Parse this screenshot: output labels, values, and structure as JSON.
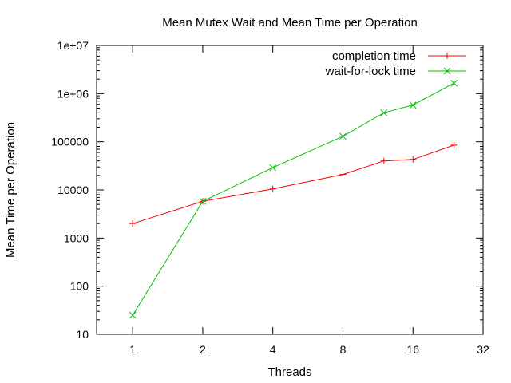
{
  "chart_data": {
    "type": "line",
    "title": "Mean Mutex Wait and Mean Time per Operation",
    "xlabel": "Threads",
    "ylabel": "Mean Time per Operation",
    "x_scale": "log2",
    "y_scale": "log10",
    "xlim": [
      0.7,
      32
    ],
    "ylim": [
      10,
      10000000
    ],
    "x_ticks": [
      {
        "value": 1,
        "label": "1"
      },
      {
        "value": 2,
        "label": "2"
      },
      {
        "value": 4,
        "label": "4"
      },
      {
        "value": 8,
        "label": "8"
      },
      {
        "value": 16,
        "label": "16"
      },
      {
        "value": 32,
        "label": "32"
      }
    ],
    "y_ticks": [
      {
        "value": 10,
        "label": "10"
      },
      {
        "value": 100,
        "label": "100"
      },
      {
        "value": 1000,
        "label": "1000"
      },
      {
        "value": 10000,
        "label": "10000"
      },
      {
        "value": 100000,
        "label": "100000"
      },
      {
        "value": 1000000,
        "label": "1e+06"
      },
      {
        "value": 10000000,
        "label": "1e+07"
      }
    ],
    "legend_position": "top-right",
    "grid": false,
    "series": [
      {
        "name": "completion time",
        "color": "#ff0000",
        "marker": "plus",
        "x": [
          1,
          2,
          4,
          8,
          12,
          16,
          24
        ],
        "y": [
          2000,
          5800,
          10500,
          21000,
          40000,
          43000,
          85000
        ]
      },
      {
        "name": "wait-for-lock time",
        "color": "#00c000",
        "marker": "cross",
        "x": [
          1,
          2,
          4,
          8,
          12,
          16,
          24
        ],
        "y": [
          25,
          5800,
          29000,
          130000,
          400000,
          580000,
          1650000
        ]
      }
    ]
  }
}
